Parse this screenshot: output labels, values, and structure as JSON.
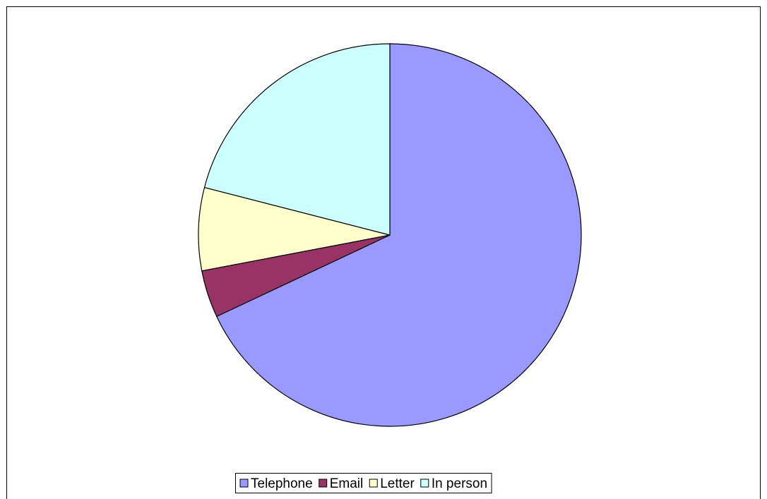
{
  "chart_data": {
    "type": "pie",
    "categories": [
      "Telephone",
      "Email",
      "Letter",
      "In person"
    ],
    "values": [
      68,
      4,
      7,
      21
    ],
    "colors": [
      "#9999ff",
      "#993366",
      "#ffffcc",
      "#ccffff"
    ],
    "legend": "bottom"
  }
}
